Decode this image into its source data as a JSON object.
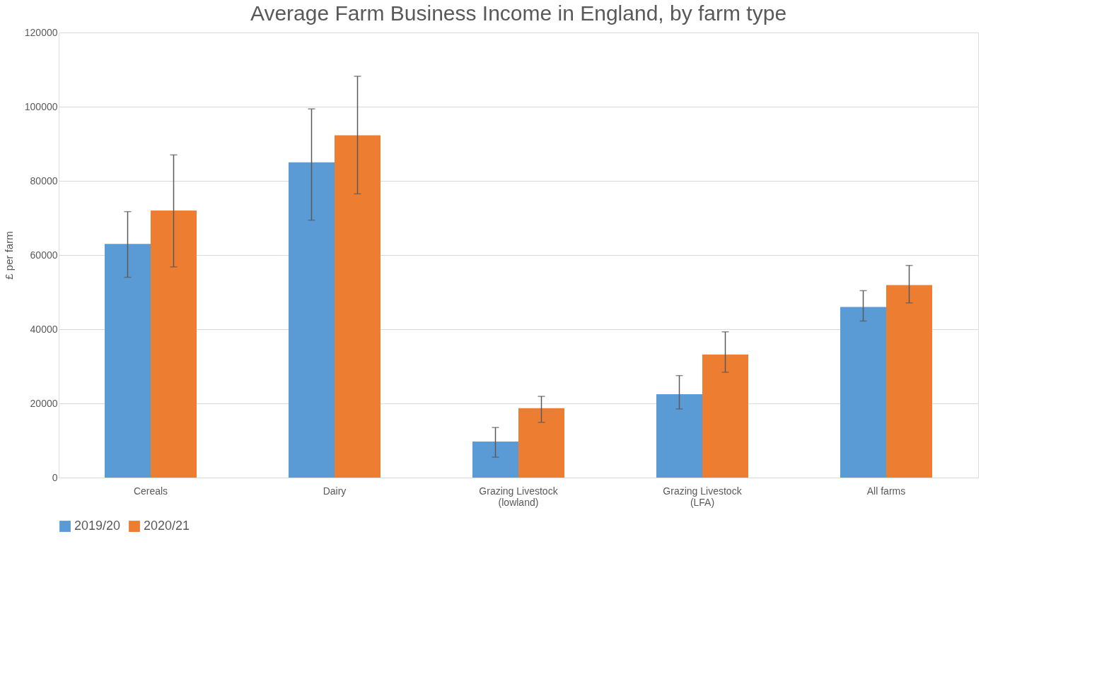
{
  "chart_data": {
    "type": "bar",
    "title": "Average Farm Business Income in England, by farm type",
    "ylabel": "£ per farm",
    "categories": [
      "Cereals",
      "Dairy",
      "Grazing Livestock\n(lowland)",
      "Grazing Livestock\n(LFA)",
      "All farms"
    ],
    "series": [
      {
        "name": "2019/20",
        "color": "#5b9bd5",
        "values": [
          63000,
          85000,
          9700,
          22500,
          46000
        ],
        "errors": [
          [
            54000,
            71700
          ],
          [
            69400,
            99400
          ],
          [
            5500,
            13500
          ],
          [
            18500,
            27500
          ],
          [
            42200,
            50400
          ]
        ]
      },
      {
        "name": "2020/21",
        "color": "#ed7d31",
        "values": [
          72000,
          92300,
          18700,
          33200,
          51900
        ],
        "errors": [
          [
            56800,
            87000
          ],
          [
            76500,
            108200
          ],
          [
            14900,
            21900
          ],
          [
            28400,
            39300
          ],
          [
            47100,
            57200
          ]
        ]
      }
    ],
    "ylim": [
      0,
      120000
    ],
    "yticks": [
      0,
      20000,
      40000,
      60000,
      80000,
      100000,
      120000
    ],
    "grid": "y",
    "legend": "bottom"
  }
}
